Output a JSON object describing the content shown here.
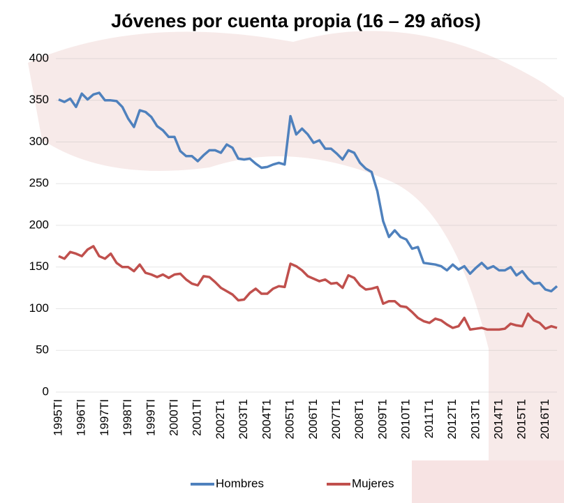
{
  "chart_data": {
    "type": "line",
    "title": "Jóvenes por cuenta propia (16 – 29 años)",
    "categories": [
      "1995TI",
      null,
      null,
      null,
      "1996TI",
      null,
      null,
      null,
      "1997TI",
      null,
      null,
      null,
      "1998TI",
      null,
      null,
      null,
      "1999TI",
      null,
      null,
      null,
      "2000TI",
      null,
      null,
      null,
      "2001TI",
      null,
      null,
      null,
      "2002T1",
      null,
      null,
      null,
      "2003T1",
      null,
      null,
      null,
      "2004T1",
      null,
      null,
      null,
      "2005T1",
      null,
      null,
      null,
      "2006T1",
      null,
      null,
      null,
      "2007T1",
      null,
      null,
      null,
      "2008T1",
      null,
      null,
      null,
      "2009T1",
      null,
      null,
      null,
      "2010T1",
      null,
      null,
      null,
      "2011T1",
      null,
      null,
      null,
      "2012T1",
      null,
      null,
      null,
      "2013T1",
      null,
      null,
      null,
      "2014T1",
      null,
      null,
      null,
      "2015T1",
      null,
      null,
      null,
      "2016T1",
      null,
      null
    ],
    "series": [
      {
        "name": "Hombres",
        "color": "#4f81bd",
        "values": [
          351,
          348,
          352,
          342,
          358,
          351,
          357,
          359,
          350,
          350,
          349,
          342,
          328,
          318,
          338,
          336,
          330,
          319,
          314,
          306,
          306,
          289,
          283,
          283,
          277,
          284,
          290,
          290,
          287,
          297,
          293,
          280,
          279,
          280,
          274,
          269,
          270,
          273,
          275,
          273,
          331,
          309,
          316,
          309,
          299,
          302,
          292,
          292,
          286,
          279,
          290,
          287,
          275,
          268,
          264,
          241,
          205,
          186,
          194,
          186,
          183,
          172,
          174,
          155,
          154,
          153,
          151,
          146,
          153,
          147,
          151,
          142,
          149,
          155,
          148,
          151,
          146,
          146,
          150,
          140,
          145,
          136,
          130,
          131,
          123,
          121,
          127
        ]
      },
      {
        "name": "Mujeres",
        "color": "#c0504d",
        "values": [
          163,
          160,
          168,
          166,
          163,
          171,
          175,
          163,
          160,
          166,
          155,
          150,
          150,
          145,
          153,
          143,
          141,
          138,
          141,
          137,
          141,
          142,
          135,
          130,
          128,
          139,
          138,
          132,
          125,
          121,
          117,
          110,
          111,
          119,
          124,
          118,
          118,
          124,
          127,
          126,
          154,
          151,
          146,
          139,
          136,
          133,
          135,
          130,
          131,
          125,
          140,
          137,
          128,
          123,
          124,
          126,
          106,
          109,
          109,
          103,
          102,
          96,
          89,
          85,
          83,
          88,
          86,
          81,
          77,
          79,
          89,
          75,
          76,
          77,
          75,
          75,
          75,
          76,
          82,
          80,
          79,
          94,
          86,
          83,
          76,
          79,
          77
        ]
      }
    ],
    "ylim": [
      0,
      400
    ],
    "yticks": [
      0,
      50,
      100,
      150,
      200,
      250,
      300,
      350,
      400
    ],
    "grid": true,
    "legend": "bottom"
  }
}
